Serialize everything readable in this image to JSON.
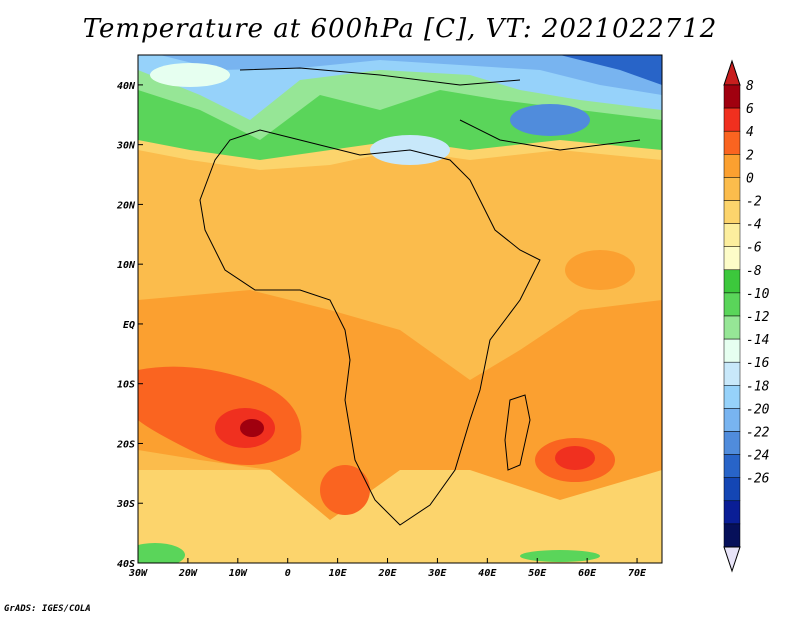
{
  "title": "Temperature at 600hPa [C], VT: 2021022712",
  "credit": "GrADS: IGES/COLA",
  "map": {
    "lon_range": [
      -30,
      75
    ],
    "lat_range": [
      -40,
      45
    ],
    "lon_ticks": [
      "30W",
      "20W",
      "10W",
      "0",
      "10E",
      "20E",
      "30E",
      "40E",
      "50E",
      "60E",
      "70E"
    ],
    "lat_ticks": [
      "40N",
      "30N",
      "20N",
      "10N",
      "EQ",
      "10S",
      "20S",
      "30S",
      "40S"
    ]
  },
  "colorbar": {
    "labels": [
      "8",
      "6",
      "4",
      "2",
      "0",
      "-2",
      "-4",
      "-6",
      "-8",
      "-10",
      "-12",
      "-14",
      "-16",
      "-18",
      "-20",
      "-22",
      "-24",
      "-26"
    ],
    "colors": [
      "#a0000f",
      "#f0301f",
      "#fa6420",
      "#fba030",
      "#fbbc4c",
      "#fcd46c",
      "#fcee9e",
      "#fdfcc8",
      "#3cc83c",
      "#5ad55a",
      "#96e696",
      "#e6fff0",
      "#c8e8fa",
      "#96d2fa",
      "#78b4f0",
      "#508cdc",
      "#2864c8",
      "#1446b4",
      "#0a1e96",
      "#06105a"
    ],
    "top_color": "#c81e1e",
    "bottom_color": "#e8e4f8"
  }
}
